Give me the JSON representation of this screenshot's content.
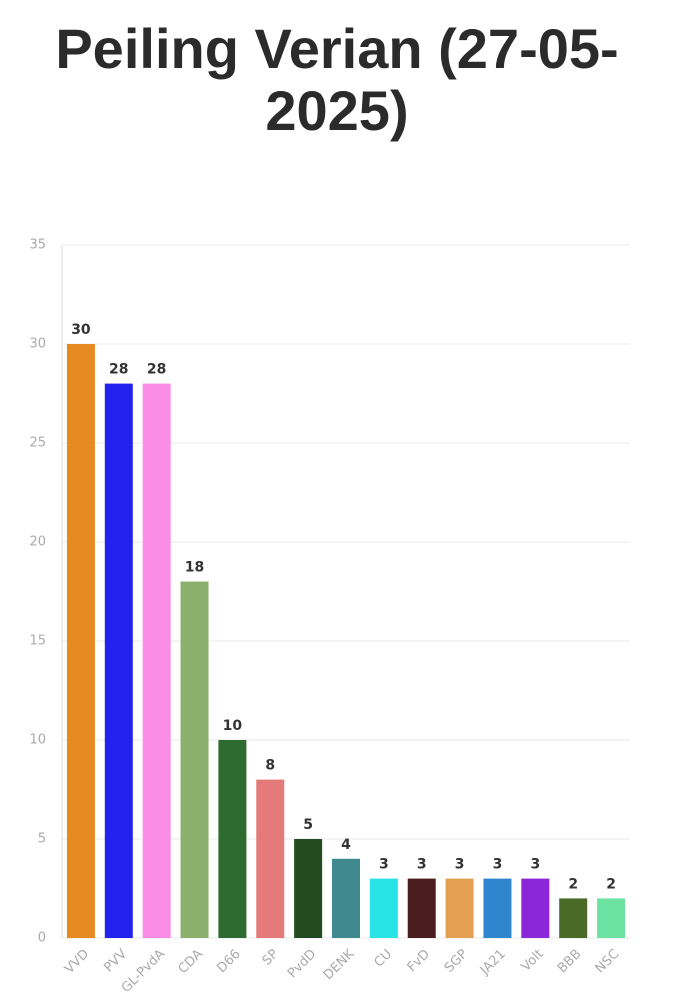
{
  "chart_data": {
    "type": "bar",
    "title": "Peiling Verian (27-05-2025)",
    "categories": [
      "VVD",
      "PVV",
      "GL-PvdA",
      "CDA",
      "D66",
      "SP",
      "PvdD",
      "DENK",
      "CU",
      "FvD",
      "SGP",
      "JA21",
      "Volt",
      "BBB",
      "NSC"
    ],
    "values": [
      30,
      28,
      28,
      18,
      10,
      8,
      5,
      4,
      3,
      3,
      3,
      3,
      3,
      2,
      2
    ],
    "colors": [
      "#e78a22",
      "#2222ee",
      "#fb8de6",
      "#8bb06d",
      "#2e6b2e",
      "#e57a7a",
      "#234a20",
      "#3f8a8f",
      "#27e3e3",
      "#4a1c1e",
      "#e2a050",
      "#2f86cf",
      "#8a27d8",
      "#4a6a28",
      "#6ce3a0"
    ],
    "ylim": [
      0,
      35
    ],
    "yticks": [
      0,
      5,
      10,
      15,
      20,
      25,
      30,
      35
    ],
    "grid": true
  }
}
